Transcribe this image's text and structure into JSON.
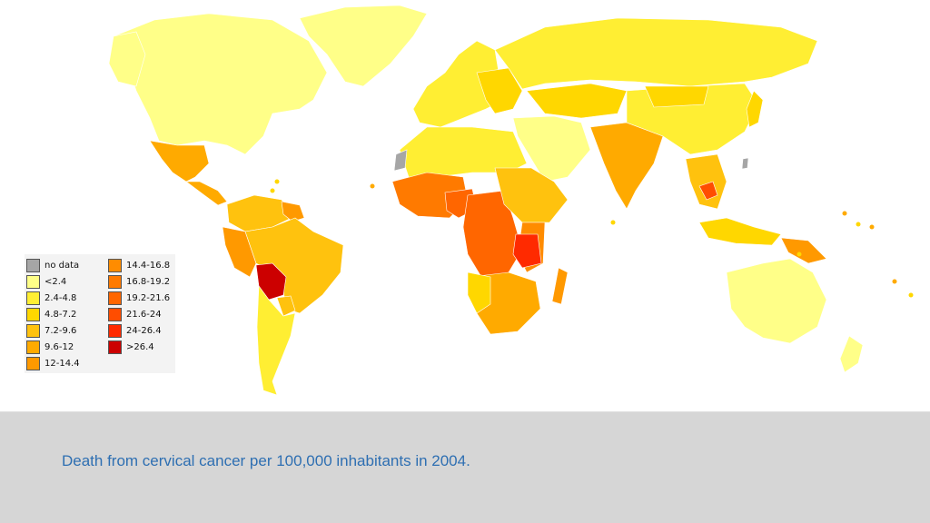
{
  "caption": "Death from cervical cancer per 100,000 inhabitants in 2004.",
  "legend": {
    "items": [
      {
        "label": "no data",
        "color": "#a6a6a6"
      },
      {
        "label": "<2.4",
        "color": "#ffff88"
      },
      {
        "label": "2.4-4.8",
        "color": "#ffee33"
      },
      {
        "label": "4.8-7.2",
        "color": "#ffd700"
      },
      {
        "label": "7.2-9.6",
        "color": "#ffc20e"
      },
      {
        "label": "9.6-12",
        "color": "#ffaa00"
      },
      {
        "label": "12-14.4",
        "color": "#ff9900"
      },
      {
        "label": "14.4-16.8",
        "color": "#ff8c00"
      },
      {
        "label": "16.8-19.2",
        "color": "#ff7a00"
      },
      {
        "label": "19.2-21.6",
        "color": "#ff6600"
      },
      {
        "label": "21.6-24",
        "color": "#ff4d00"
      },
      {
        "label": "24-26.4",
        "color": "#ff2a00"
      },
      {
        "label": ">26.4",
        "color": "#cc0000"
      }
    ]
  }
}
